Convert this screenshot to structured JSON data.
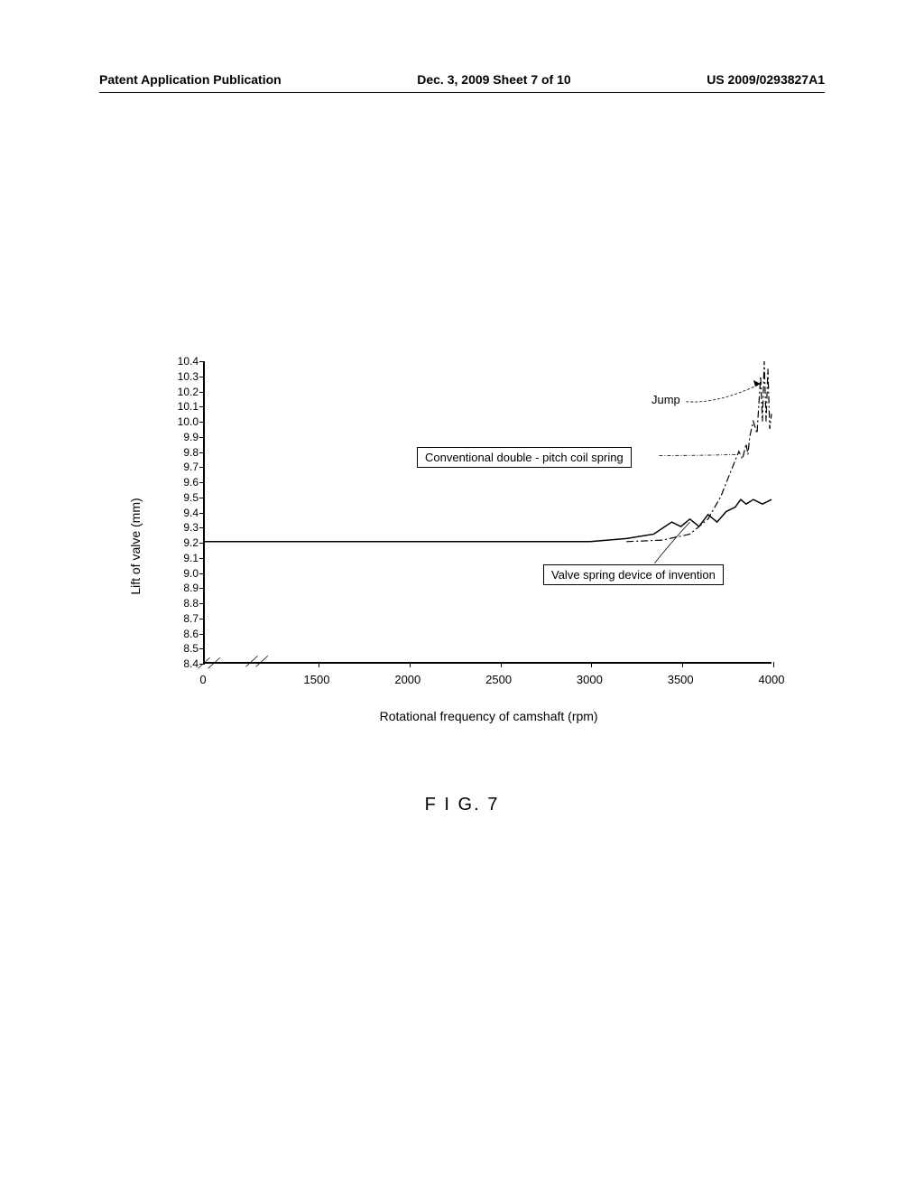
{
  "header": {
    "left": "Patent Application Publication",
    "center": "Dec. 3, 2009  Sheet 7 of 10",
    "right": "US 2009/0293827A1"
  },
  "chart": {
    "type": "line",
    "y_label": "Lift of valve (mm)",
    "x_label": "Rotational frequency of camshaft (rpm)",
    "y_ticks": [
      "10.4",
      "10.3",
      "10.2",
      "10.1",
      "10.0",
      "9.9",
      "9.8",
      "9.7",
      "9.6",
      "9.5",
      "9.4",
      "9.3",
      "9.2",
      "9.1",
      "9.0",
      "8.9",
      "8.8",
      "8.7",
      "8.6",
      "8.5",
      "8.4"
    ],
    "x_ticks": [
      "0",
      "1500",
      "2000",
      "2500",
      "3000",
      "3500",
      "4000"
    ],
    "x_tick_positions_pct": [
      0,
      20,
      36,
      52,
      68,
      84,
      100
    ],
    "ylim": [
      8.4,
      10.4
    ],
    "xlim": [
      0,
      4000
    ],
    "legend_conventional": "Conventional double - pitch coil spring",
    "legend_invention": "Valve spring device of invention",
    "annotation_jump": "Jump",
    "series": {
      "invention": {
        "color": "#000000",
        "style": "solid",
        "points": [
          [
            0,
            9.2
          ],
          [
            1500,
            9.2
          ],
          [
            2000,
            9.2
          ],
          [
            2500,
            9.2
          ],
          [
            3000,
            9.2
          ],
          [
            3200,
            9.22
          ],
          [
            3350,
            9.25
          ],
          [
            3450,
            9.33
          ],
          [
            3500,
            9.3
          ],
          [
            3550,
            9.35
          ],
          [
            3600,
            9.3
          ],
          [
            3650,
            9.38
          ],
          [
            3700,
            9.33
          ],
          [
            3750,
            9.4
          ],
          [
            3800,
            9.43
          ],
          [
            3830,
            9.48
          ],
          [
            3860,
            9.45
          ],
          [
            3900,
            9.48
          ],
          [
            3950,
            9.45
          ],
          [
            4000,
            9.48
          ]
        ]
      },
      "conventional": {
        "color": "#000000",
        "style": "dashdot",
        "points": [
          [
            3200,
            9.2
          ],
          [
            3400,
            9.21
          ],
          [
            3550,
            9.25
          ],
          [
            3650,
            9.35
          ],
          [
            3720,
            9.5
          ],
          [
            3780,
            9.68
          ],
          [
            3820,
            9.8
          ],
          [
            3840,
            9.75
          ],
          [
            3860,
            9.85
          ],
          [
            3870,
            9.78
          ],
          [
            3880,
            9.9
          ],
          [
            3900,
            10.0
          ],
          [
            3920,
            9.92
          ],
          [
            3940,
            10.3
          ],
          [
            3950,
            10.0
          ],
          [
            3960,
            10.4
          ],
          [
            3970,
            10.0
          ],
          [
            3980,
            10.35
          ],
          [
            3990,
            9.95
          ],
          [
            4000,
            10.05
          ]
        ]
      }
    },
    "colors": {
      "axis": "#000000",
      "background": "#ffffff",
      "text": "#000000"
    },
    "font_sizes": {
      "axis_label": 14,
      "tick_label": 12,
      "legend": 13,
      "figure_label": 20
    }
  },
  "figure_label": "F I G. 7"
}
